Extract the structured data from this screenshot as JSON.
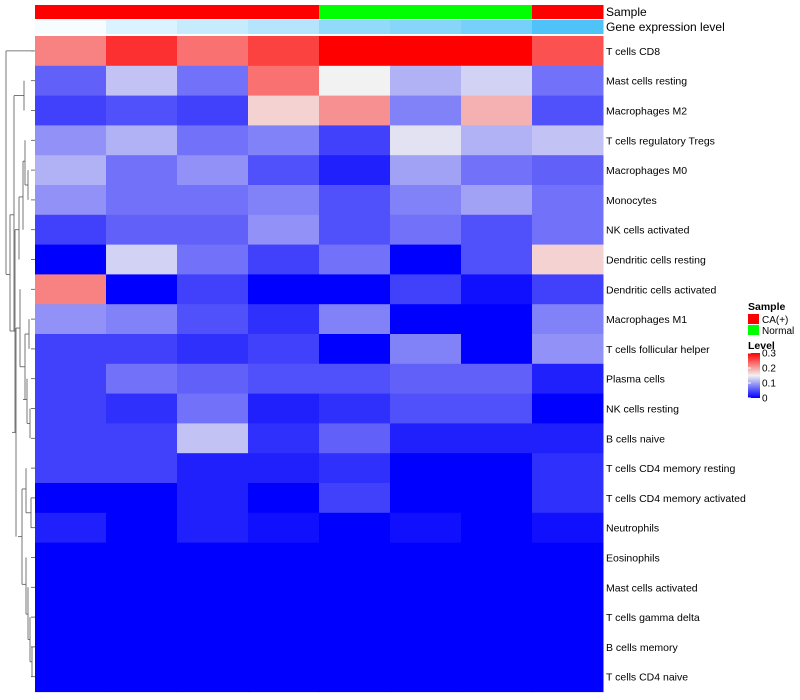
{
  "chart_data": {
    "type": "heatmap",
    "annotation_rows": [
      "Sample",
      "Gene expression level"
    ],
    "columns": [
      {
        "sample": "CA(+)",
        "expression": 0.0
      },
      {
        "sample": "CA(+)",
        "expression": 0.05
      },
      {
        "sample": "CA(+)",
        "expression": 0.09
      },
      {
        "sample": "CA(+)",
        "expression": 0.12
      },
      {
        "sample": "Normal",
        "expression": 0.18
      },
      {
        "sample": "Normal",
        "expression": 0.2
      },
      {
        "sample": "Normal",
        "expression": 0.23
      },
      {
        "sample": "CA(+)",
        "expression": 0.3
      }
    ],
    "rows": [
      {
        "label": "T cells CD8",
        "values": [
          0.22,
          0.27,
          0.23,
          0.26,
          0.3,
          0.3,
          0.3,
          0.25
        ]
      },
      {
        "label": "Mast cells resting",
        "values": [
          0.06,
          0.12,
          0.07,
          0.23,
          0.15,
          0.11,
          0.13,
          0.07
        ]
      },
      {
        "label": "Macrophages M2",
        "values": [
          0.04,
          0.05,
          0.04,
          0.17,
          0.21,
          0.08,
          0.19,
          0.05
        ]
      },
      {
        "label": "T cells regulatory  Tregs",
        "values": [
          0.09,
          0.11,
          0.07,
          0.08,
          0.04,
          0.14,
          0.11,
          0.12
        ]
      },
      {
        "label": "Macrophages M0",
        "values": [
          0.11,
          0.07,
          0.09,
          0.05,
          0.02,
          0.1,
          0.07,
          0.06
        ]
      },
      {
        "label": "Monocytes",
        "values": [
          0.09,
          0.07,
          0.07,
          0.08,
          0.05,
          0.08,
          0.1,
          0.07
        ]
      },
      {
        "label": "NK cells activated",
        "values": [
          0.04,
          0.06,
          0.06,
          0.09,
          0.05,
          0.07,
          0.05,
          0.07
        ]
      },
      {
        "label": "Dendritic cells resting",
        "values": [
          0.0,
          0.13,
          0.07,
          0.04,
          0.07,
          0.0,
          0.05,
          0.17
        ]
      },
      {
        "label": "Dendritic cells activated",
        "values": [
          0.22,
          0.0,
          0.04,
          0.0,
          0.0,
          0.04,
          0.01,
          0.04
        ]
      },
      {
        "label": "Macrophages M1",
        "values": [
          0.09,
          0.08,
          0.05,
          0.03,
          0.08,
          0.0,
          0.0,
          0.08
        ]
      },
      {
        "label": "T cells follicular helper",
        "values": [
          0.04,
          0.04,
          0.03,
          0.04,
          0.0,
          0.08,
          0.0,
          0.09
        ]
      },
      {
        "label": "Plasma cells",
        "values": [
          0.04,
          0.07,
          0.06,
          0.05,
          0.05,
          0.06,
          0.06,
          0.02
        ]
      },
      {
        "label": "NK cells resting",
        "values": [
          0.04,
          0.03,
          0.07,
          0.02,
          0.03,
          0.05,
          0.05,
          0.0
        ]
      },
      {
        "label": "B cells naive",
        "values": [
          0.04,
          0.04,
          0.12,
          0.03,
          0.06,
          0.02,
          0.02,
          0.02
        ]
      },
      {
        "label": "T cells CD4 memory resting",
        "values": [
          0.04,
          0.04,
          0.02,
          0.02,
          0.03,
          0.0,
          0.0,
          0.03
        ]
      },
      {
        "label": "T cells CD4 memory activated",
        "values": [
          0.0,
          0.0,
          0.02,
          0.0,
          0.04,
          0.0,
          0.0,
          0.03
        ]
      },
      {
        "label": "Neutrophils",
        "values": [
          0.02,
          0.0,
          0.02,
          0.01,
          0.0,
          0.01,
          0.0,
          0.01
        ]
      },
      {
        "label": "Eosinophils",
        "values": [
          0.0,
          0.0,
          0.0,
          0.0,
          0.0,
          0.0,
          0.0,
          0.0
        ]
      },
      {
        "label": "Mast cells activated",
        "values": [
          0.0,
          0.0,
          0.0,
          0.0,
          0.0,
          0.0,
          0.0,
          0.0
        ]
      },
      {
        "label": "T cells gamma delta",
        "values": [
          0.0,
          0.0,
          0.0,
          0.0,
          0.0,
          0.0,
          0.0,
          0.0
        ]
      },
      {
        "label": "B cells memory",
        "values": [
          0.0,
          0.0,
          0.0,
          0.0,
          0.0,
          0.0,
          0.0,
          0.0
        ]
      },
      {
        "label": "T cells CD4 naive",
        "values": [
          0.0,
          0.0,
          0.0,
          0.0,
          0.0,
          0.0,
          0.0,
          0.0
        ]
      }
    ],
    "legend": {
      "sample_title": "Sample",
      "sample_items": [
        {
          "label": "CA(+)",
          "color": "#ff0000"
        },
        {
          "label": "Normal",
          "color": "#00ff00"
        }
      ],
      "level_title": "Level",
      "level_ticks": [
        {
          "label": "0.3",
          "value": 0.3
        },
        {
          "label": "0.2",
          "value": 0.2
        },
        {
          "label": "0.1",
          "value": 0.1
        },
        {
          "label": "0",
          "value": 0
        }
      ],
      "range": [
        0,
        0.3
      ]
    },
    "colors": {
      "low": "#0000ff",
      "mid": "#f2f2f2",
      "high": "#ff0000",
      "expression_low": "#f7fcff",
      "expression_high": "#4fc3f7"
    }
  }
}
